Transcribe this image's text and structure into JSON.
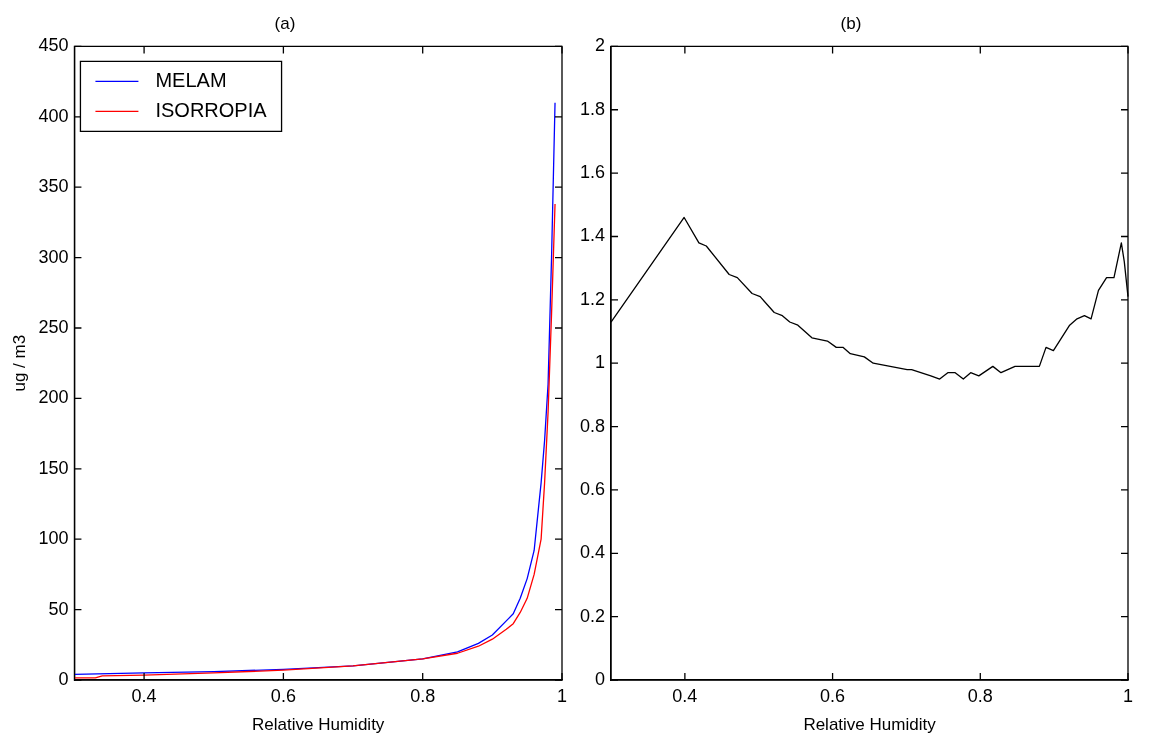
{
  "chart_data": [
    {
      "type": "line",
      "title": "(a)",
      "xlabel": "Relative Humidity",
      "ylabel": "ug / m3",
      "xlim": [
        0.3,
        1
      ],
      "xticks": [
        0.4,
        0.6,
        0.8,
        1
      ],
      "ylim": [
        0,
        450
      ],
      "yticks": [
        0,
        50,
        100,
        150,
        200,
        250,
        300,
        350,
        400,
        450
      ],
      "grid": false,
      "legend": "top left",
      "series": [
        {
          "name": "MELAM",
          "color": "#0000ff",
          "x": [
            0.3,
            0.35,
            0.4,
            0.5,
            0.6,
            0.7,
            0.8,
            0.85,
            0.88,
            0.9,
            0.92,
            0.93,
            0.94,
            0.95,
            0.96,
            0.97,
            0.975,
            0.98,
            0.985,
            0.99
          ],
          "values": [
            4,
            4.5,
            5,
            6,
            7.5,
            10,
            15,
            20,
            26,
            32,
            42,
            47,
            58,
            72,
            92,
            140,
            170,
            210,
            300,
            410
          ]
        },
        {
          "name": "ISORROPIA",
          "color": "#ff0000",
          "x": [
            0.3,
            0.33,
            0.34,
            0.4,
            0.5,
            0.6,
            0.7,
            0.8,
            0.85,
            0.88,
            0.9,
            0.92,
            0.93,
            0.94,
            0.95,
            0.96,
            0.97,
            0.975,
            0.98,
            0.985,
            0.99
          ],
          "values": [
            1.5,
            1.5,
            3,
            3.5,
            5,
            7,
            10,
            15,
            19,
            24,
            29,
            36,
            40,
            48,
            58,
            75,
            100,
            140,
            190,
            260,
            338
          ]
        }
      ]
    },
    {
      "type": "line",
      "title": "(b)",
      "xlabel": "Relative Humidity",
      "xlim": [
        0.3,
        1
      ],
      "xticks": [
        0.4,
        0.6,
        0.8,
        1
      ],
      "ylim": [
        0,
        2
      ],
      "yticks": [
        0,
        0.2,
        0.4,
        0.6,
        0.8,
        1,
        1.2,
        1.4,
        1.6,
        1.8,
        2
      ],
      "grid": false,
      "legend": false,
      "series": [
        {
          "color": "#000000",
          "x": [
            0.3,
            0.399,
            0.419,
            0.429,
            0.46,
            0.471,
            0.491,
            0.502,
            0.521,
            0.532,
            0.542,
            0.553,
            0.572,
            0.593,
            0.605,
            0.614,
            0.624,
            0.643,
            0.655,
            0.701,
            0.707,
            0.733,
            0.745,
            0.756,
            0.766,
            0.777,
            0.787,
            0.798,
            0.817,
            0.828,
            0.847,
            0.869,
            0.88,
            0.889,
            0.899,
            0.91,
            0.921,
            0.931,
            0.941,
            0.95,
            0.96,
            0.971,
            0.981,
            0.991,
            0.995,
            1
          ],
          "values": [
            1.13,
            1.46,
            1.38,
            1.37,
            1.28,
            1.27,
            1.22,
            1.21,
            1.16,
            1.15,
            1.13,
            1.12,
            1.08,
            1.07,
            1.05,
            1.05,
            1.03,
            1.02,
            1,
            0.98,
            0.98,
            0.96,
            0.95,
            0.97,
            0.97,
            0.95,
            0.97,
            0.96,
            0.99,
            0.97,
            0.99,
            0.99,
            0.99,
            1.05,
            1.04,
            1.08,
            1.12,
            1.14,
            1.15,
            1.14,
            1.23,
            1.27,
            1.27,
            1.38,
            1.32,
            1.21
          ]
        }
      ]
    }
  ]
}
